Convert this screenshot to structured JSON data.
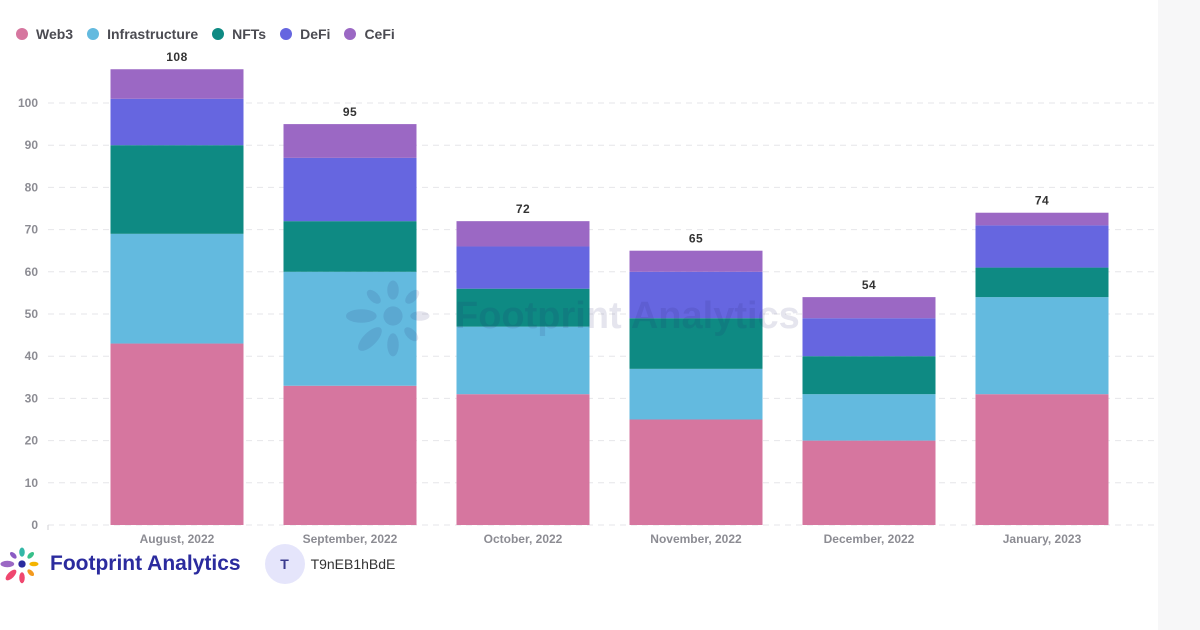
{
  "legend": [
    {
      "name": "Web3",
      "color": "#d6769f"
    },
    {
      "name": "Infrastructure",
      "color": "#63badf"
    },
    {
      "name": "NFTs",
      "color": "#0e8a83"
    },
    {
      "name": "DeFi",
      "color": "#6666e0"
    },
    {
      "name": "CeFi",
      "color": "#9b68c4"
    }
  ],
  "chart_data": {
    "type": "bar",
    "stacked": true,
    "categories": [
      "August, 2022",
      "September, 2022",
      "October, 2022",
      "November, 2022",
      "December, 2022",
      "January, 2023"
    ],
    "series": [
      {
        "name": "Web3",
        "color": "#d6769f",
        "values": [
          43,
          33,
          31,
          25,
          20,
          31
        ]
      },
      {
        "name": "Infrastructure",
        "color": "#63badf",
        "values": [
          26,
          27,
          16,
          12,
          11,
          23
        ]
      },
      {
        "name": "NFTs",
        "color": "#0e8a83",
        "values": [
          21,
          12,
          9,
          12,
          9,
          7
        ]
      },
      {
        "name": "DeFi",
        "color": "#6666e0",
        "values": [
          11,
          15,
          10,
          11,
          9,
          10
        ]
      },
      {
        "name": "CeFi",
        "color": "#9b68c4",
        "values": [
          7,
          8,
          6,
          5,
          5,
          3
        ]
      }
    ],
    "totals": [
      108,
      95,
      72,
      65,
      54,
      74
    ],
    "yticks": [
      0,
      10,
      20,
      30,
      40,
      50,
      60,
      70,
      80,
      90,
      100
    ],
    "ylim": [
      0,
      108
    ],
    "grid": true,
    "legend_position": "top-left",
    "title": "",
    "xlabel": "",
    "ylabel": ""
  },
  "watermark": {
    "text": "Footprint Analytics"
  },
  "footer": {
    "brand": "Footprint Analytics",
    "avatar_initial": "T",
    "user_id": "T9nEB1hBdE"
  }
}
